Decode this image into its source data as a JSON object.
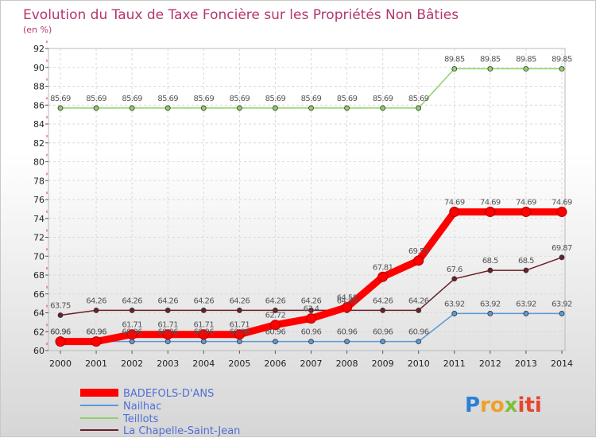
{
  "chart_data": {
    "type": "line",
    "title": "Evolution du Taux de Taxe Foncière sur les Propriétés Non Bâties",
    "subtitle": "(en %)",
    "xlabel": "",
    "ylabel": "",
    "x": [
      "2000",
      "2001",
      "2002",
      "2003",
      "2004",
      "2005",
      "2006",
      "2007",
      "2008",
      "2009",
      "2010",
      "2011",
      "2012",
      "2013",
      "2014"
    ],
    "ylim": [
      60,
      92
    ],
    "yticks": [
      60,
      62,
      64,
      66,
      68,
      70,
      72,
      74,
      76,
      78,
      80,
      82,
      84,
      86,
      88,
      90,
      92
    ],
    "legend_position": "bottom-left",
    "series": [
      {
        "name": "BADEFOLS-D'ANS",
        "color": "#ff0000",
        "values": [
          60.96,
          60.96,
          61.71,
          61.71,
          61.71,
          61.71,
          62.72,
          63.4,
          64.58,
          67.81,
          69.53,
          74.69,
          74.69,
          74.69,
          74.69
        ],
        "labels": [
          "60.96",
          "60.96",
          "61.71",
          "61.71",
          "61.71",
          "61.71",
          "62.72",
          "63.4",
          "64.58",
          "67.81",
          "69.53",
          "74.69",
          "74.69",
          "74.69",
          "74.69"
        ]
      },
      {
        "name": "Nailhac",
        "color": "#5b9bd5",
        "values": [
          60.96,
          60.96,
          60.96,
          60.96,
          60.96,
          60.96,
          60.96,
          60.96,
          60.96,
          60.96,
          60.96,
          63.92,
          63.92,
          63.92,
          63.92
        ],
        "labels": [
          "60.96",
          "60.96",
          "60.96",
          "60.96",
          "60.96",
          "60.96",
          "60.96",
          "60.96",
          "60.96",
          "60.96",
          "60.96",
          "63.92",
          "63.92",
          "63.92",
          "63.92"
        ]
      },
      {
        "name": "Teillots",
        "color": "#8fd16a",
        "values": [
          85.69,
          85.69,
          85.69,
          85.69,
          85.69,
          85.69,
          85.69,
          85.69,
          85.69,
          85.69,
          85.69,
          89.85,
          89.85,
          89.85,
          89.85
        ],
        "labels": [
          "85.69",
          "85.69",
          "85.69",
          "85.69",
          "85.69",
          "85.69",
          "85.69",
          "85.69",
          "85.69",
          "85.69",
          "85.69",
          "89.85",
          "89.85",
          "89.85",
          "89.85"
        ]
      },
      {
        "name": "La Chapelle-Saint-Jean",
        "color": "#6b1f28",
        "values": [
          63.75,
          64.26,
          64.26,
          64.26,
          64.26,
          64.26,
          64.26,
          64.26,
          64.26,
          64.26,
          64.26,
          67.6,
          68.5,
          68.5,
          69.87
        ],
        "labels": [
          "63.75",
          "64.26",
          "64.26",
          "64.26",
          "64.26",
          "64.26",
          "64.26",
          "64.26",
          "64.26",
          "64.26",
          "64.26",
          "67.6",
          "68.5",
          "68.5",
          "69.87"
        ]
      }
    ]
  },
  "logo": {
    "text": "Proxiti",
    "colors": [
      "#2b7fd6",
      "#f0a02a",
      "#7cbf3a",
      "#e8442f"
    ]
  }
}
